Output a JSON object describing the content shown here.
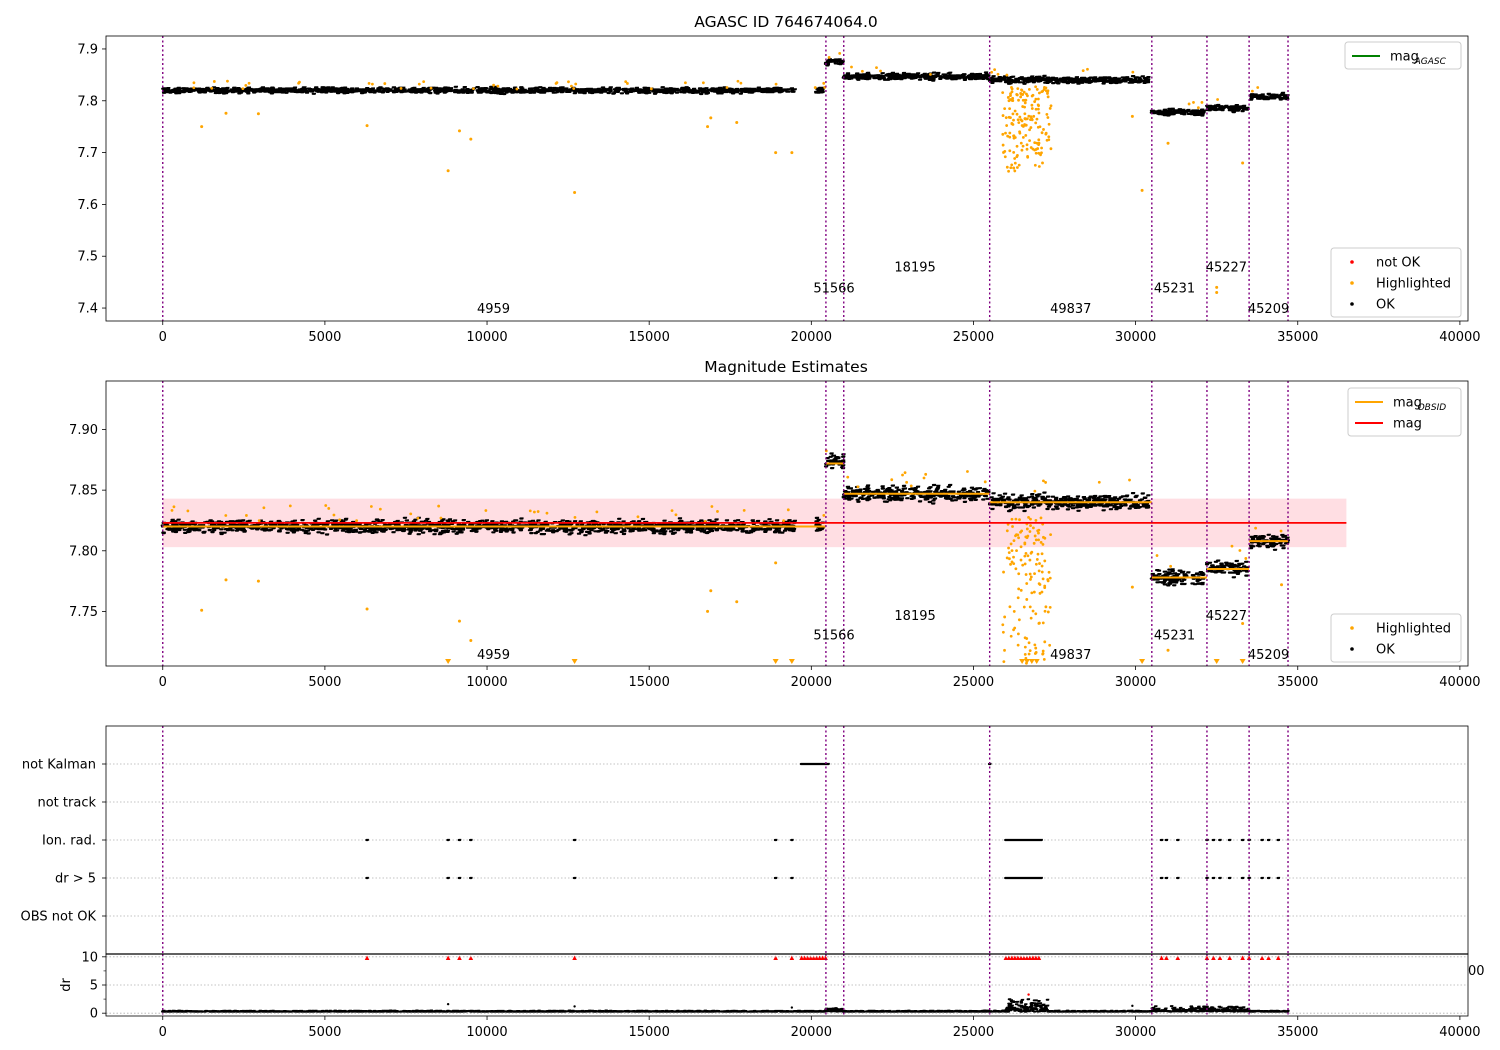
{
  "colors": {
    "ok": "#000000",
    "highlighted": "#FFA500",
    "not_ok": "#FF0000",
    "mag_agasc": "#008000",
    "mag_obsid": "#FFA500",
    "mag": "#FF0000",
    "band": "#FFB6C1",
    "obsid_line": "#800080"
  },
  "chart_data": [
    {
      "type": "scatter",
      "title": "AGASC ID 764674064.0",
      "xlim": [
        -1750,
        40250
      ],
      "ylim": [
        7.375,
        7.925
      ],
      "x_ticks": [
        0,
        5000,
        10000,
        15000,
        20000,
        25000,
        30000,
        35000,
        40000
      ],
      "y_ticks": [
        7.4,
        7.5,
        7.6,
        7.7,
        7.8,
        7.9
      ],
      "y_tick_labels": [
        "7.4",
        "7.5",
        "7.6",
        "7.7",
        "7.8",
        "7.9"
      ],
      "grid": false,
      "legends": [
        {
          "placement": "top-right",
          "entries": [
            {
              "label": "mag",
              "subscript": "AGASC",
              "style": "line",
              "color_key": "mag_agasc"
            }
          ]
        },
        {
          "placement": "bottom-right",
          "entries": [
            {
              "label": "not OK",
              "style": "dot",
              "color_key": "not_ok"
            },
            {
              "label": "Highlighted",
              "style": "dot",
              "color_key": "highlighted"
            },
            {
              "label": "OK",
              "style": "dot",
              "color_key": "ok"
            }
          ]
        }
      ],
      "obsid_boundaries": [
        0,
        20450,
        21000,
        25500,
        30500,
        32200,
        33500,
        34700
      ],
      "obsid_labels": [
        {
          "text": "4959",
          "x": 10200,
          "y": 7.4
        },
        {
          "text": "51566",
          "x": 20700,
          "y": 7.44
        },
        {
          "text": "18195",
          "x": 23200,
          "y": 7.48
        },
        {
          "text": "49837",
          "x": 28000,
          "y": 7.4
        },
        {
          "text": "45231",
          "x": 31200,
          "y": 7.44
        },
        {
          "text": "45227",
          "x": 32800,
          "y": 7.48
        },
        {
          "text": "45209",
          "x": 34100,
          "y": 7.4
        }
      ],
      "ok_segments": [
        {
          "x": [
            0,
            19500
          ],
          "center": 7.82,
          "spread": 0.007
        },
        {
          "x": [
            20150,
            20350
          ],
          "center": 7.82,
          "spread": 0.008
        },
        {
          "x": [
            20450,
            21000
          ],
          "center": 7.875,
          "spread": 0.008
        },
        {
          "x": [
            21000,
            25500
          ],
          "center": 7.847,
          "spread": 0.008
        },
        {
          "x": [
            25500,
            30400
          ],
          "center": 7.84,
          "spread": 0.008
        },
        {
          "x": [
            30500,
            32100
          ],
          "center": 7.778,
          "spread": 0.008
        },
        {
          "x": [
            32200,
            33450
          ],
          "center": 7.786,
          "spread": 0.008
        },
        {
          "x": [
            33550,
            34700
          ],
          "center": 7.808,
          "spread": 0.008
        }
      ],
      "highlighted_points": [
        {
          "x": 1200,
          "y": 7.75
        },
        {
          "x": 1950,
          "y": 7.776
        },
        {
          "x": 2950,
          "y": 7.775
        },
        {
          "x": 6300,
          "y": 7.752
        },
        {
          "x": 8800,
          "y": 7.665
        },
        {
          "x": 9150,
          "y": 7.742
        },
        {
          "x": 9500,
          "y": 7.726
        },
        {
          "x": 12700,
          "y": 7.623
        },
        {
          "x": 16800,
          "y": 7.75
        },
        {
          "x": 16900,
          "y": 7.767
        },
        {
          "x": 17700,
          "y": 7.758
        },
        {
          "x": 18900,
          "y": 7.7
        },
        {
          "x": 19400,
          "y": 7.7
        },
        {
          "x": 29900,
          "y": 7.77
        },
        {
          "x": 30200,
          "y": 7.627
        },
        {
          "x": 31000,
          "y": 7.718
        },
        {
          "x": 32500,
          "y": 7.44
        },
        {
          "x": 32500,
          "y": 7.43
        },
        {
          "x": 33300,
          "y": 7.68
        }
      ]
    },
    {
      "type": "scatter",
      "title": "Magnitude Estimates",
      "xlim": [
        -1750,
        40250
      ],
      "ylim": [
        7.705,
        7.94
      ],
      "x_ticks": [
        0,
        5000,
        10000,
        15000,
        20000,
        25000,
        30000,
        35000,
        40000
      ],
      "y_ticks": [
        7.75,
        7.8,
        7.85,
        7.9
      ],
      "y_tick_labels": [
        "7.75",
        "7.80",
        "7.85",
        "7.90"
      ],
      "grid": false,
      "legends": [
        {
          "placement": "top-right",
          "entries": [
            {
              "label": "mag",
              "subscript": "OBSID",
              "style": "line",
              "color_key": "mag_obsid"
            },
            {
              "label": "mag",
              "style": "line",
              "color_key": "mag"
            }
          ]
        },
        {
          "placement": "bottom-right",
          "entries": [
            {
              "label": "Highlighted",
              "style": "dot",
              "color_key": "highlighted"
            },
            {
              "label": "OK",
              "style": "dot",
              "color_key": "ok"
            }
          ]
        }
      ],
      "mag": 7.823,
      "mag_band": [
        7.803,
        7.843
      ],
      "mag_line_x": [
        0,
        36500
      ],
      "obsid_boundaries": [
        0,
        20450,
        21000,
        25500,
        30500,
        32200,
        33500,
        34700
      ],
      "obsid_labels": [
        {
          "text": "4959",
          "x": 10200,
          "y": 7.715
        },
        {
          "text": "51566",
          "x": 20700,
          "y": 7.731
        },
        {
          "text": "18195",
          "x": 23200,
          "y": 7.747
        },
        {
          "text": "49837",
          "x": 28000,
          "y": 7.715
        },
        {
          "text": "45231",
          "x": 31200,
          "y": 7.731
        },
        {
          "text": "45227",
          "x": 32800,
          "y": 7.747
        },
        {
          "text": "45209",
          "x": 34100,
          "y": 7.715
        }
      ],
      "obsid_mags": [
        {
          "x": [
            0,
            20450
          ],
          "mag": 7.82
        },
        {
          "x": [
            20450,
            21000
          ],
          "mag": 7.872
        },
        {
          "x": [
            21000,
            25500
          ],
          "mag": 7.847
        },
        {
          "x": [
            25500,
            30500
          ],
          "mag": 7.84
        },
        {
          "x": [
            30500,
            32200
          ],
          "mag": 7.778
        },
        {
          "x": [
            32200,
            33500
          ],
          "mag": 7.785
        },
        {
          "x": [
            33500,
            34700
          ],
          "mag": 7.808
        }
      ],
      "ok_segments": [
        {
          "x": [
            0,
            19500
          ],
          "center": 7.82,
          "spread": 0.007
        },
        {
          "x": [
            20150,
            20350
          ],
          "center": 7.82,
          "spread": 0.008
        },
        {
          "x": [
            20450,
            21000
          ],
          "center": 7.875,
          "spread": 0.008
        },
        {
          "x": [
            21000,
            25500
          ],
          "center": 7.847,
          "spread": 0.008
        },
        {
          "x": [
            25500,
            30400
          ],
          "center": 7.84,
          "spread": 0.008
        },
        {
          "x": [
            30500,
            32100
          ],
          "center": 7.778,
          "spread": 0.008
        },
        {
          "x": [
            32200,
            33450
          ],
          "center": 7.786,
          "spread": 0.008
        },
        {
          "x": [
            33550,
            34700
          ],
          "center": 7.808,
          "spread": 0.008
        }
      ],
      "highlighted_points": [
        {
          "x": 1200,
          "y": 7.751
        },
        {
          "x": 1950,
          "y": 7.776
        },
        {
          "x": 2950,
          "y": 7.775
        },
        {
          "x": 6300,
          "y": 7.752
        },
        {
          "x": 9150,
          "y": 7.742
        },
        {
          "x": 9500,
          "y": 7.726
        },
        {
          "x": 16800,
          "y": 7.75
        },
        {
          "x": 16900,
          "y": 7.767
        },
        {
          "x": 17700,
          "y": 7.758
        },
        {
          "x": 18900,
          "y": 7.79
        },
        {
          "x": 29900,
          "y": 7.77
        },
        {
          "x": 31000,
          "y": 7.718
        },
        {
          "x": 33300,
          "y": 7.74
        },
        {
          "x": 34500,
          "y": 7.772
        }
      ],
      "clipped_markers_x": [
        8800,
        12700,
        18900,
        19400,
        26500,
        26650,
        26800,
        26950,
        30200,
        32500,
        33300
      ]
    },
    {
      "type": "scatter",
      "title": "",
      "xlim": [
        -1750,
        40250
      ],
      "flag_rows": [
        "not Kalman",
        "not track",
        "Ion. rad.",
        "dr > 5",
        "OBS not OK"
      ],
      "flag_points": {
        "not Kalman": {
          "ranges": [
            [
              19700,
              20500
            ]
          ],
          "points": [
            25500
          ]
        },
        "not track": {
          "ranges": [],
          "points": []
        },
        "Ion. rad.": {
          "ranges": [
            [
              26000,
              27100
            ]
          ],
          "points": [
            6300,
            8800,
            9150,
            9500,
            12700,
            18900,
            19400,
            30800,
            30950,
            31300,
            32200,
            32400,
            32600,
            32900,
            33300,
            33500,
            33900,
            34100,
            34400
          ]
        },
        "dr > 5": {
          "ranges": [
            [
              26000,
              27100
            ]
          ],
          "points": [
            6300,
            8800,
            9150,
            9500,
            12700,
            18900,
            19400,
            30800,
            30950,
            31300,
            32200,
            32400,
            32600,
            32900,
            33300,
            33500,
            33900,
            34100,
            34400
          ]
        },
        "OBS not OK": {
          "ranges": [],
          "points": []
        }
      },
      "obsid_boundaries": [
        0,
        20450,
        21000,
        25500,
        30500,
        32200,
        33500,
        34700
      ],
      "dr": {
        "ylabel": "dr",
        "ylim": [
          -0.5,
          10.5
        ],
        "y_ticks": [
          0,
          5,
          10
        ],
        "x_ticks": [
          0,
          5000,
          10000,
          15000,
          20000,
          25000,
          30000,
          35000,
          40000
        ],
        "red_markers_x": [
          6300,
          8800,
          9150,
          9500,
          12700,
          18900,
          19400,
          30800,
          30950,
          31300,
          32200,
          32400,
          32600,
          32900,
          33300,
          33500,
          33900,
          34100,
          34400
        ],
        "red_marker_ranges": [
          [
            19700,
            20500
          ],
          [
            26000,
            27100
          ]
        ],
        "baseline_ranges": [
          [
            0,
            20450
          ],
          [
            20450,
            34700
          ]
        ],
        "baseline_level": 0.25,
        "bumps": [
          {
            "x": [
              26000,
              27300
            ],
            "max": 3.0
          },
          {
            "x": [
              30500,
              33500
            ],
            "max": 1.0
          },
          {
            "x": [
              20450,
              21000
            ],
            "max": 0.6
          }
        ],
        "spikes": [
          {
            "x": 8800,
            "y": 1.6
          },
          {
            "x": 12700,
            "y": 1.2
          },
          {
            "x": 19400,
            "y": 1.0
          },
          {
            "x": 29900,
            "y": 1.3
          },
          {
            "x": 26700,
            "y": 3.3
          }
        ],
        "stray_tick_text": "00"
      }
    }
  ]
}
